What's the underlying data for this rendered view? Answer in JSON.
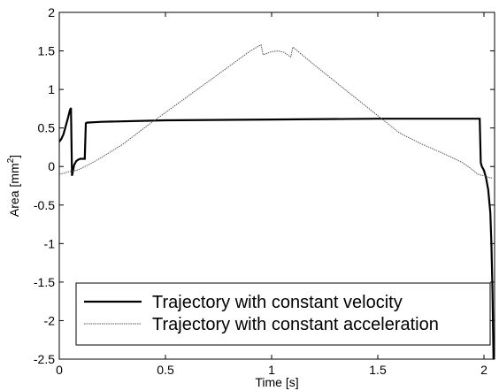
{
  "chart_data": {
    "type": "line",
    "title": "",
    "xlabel": "Time [s]",
    "ylabel_main": "Area [mm",
    "ylabel_sup": "2",
    "ylabel_close": "]",
    "xlim": [
      0,
      2.05
    ],
    "ylim": [
      -2.5,
      2
    ],
    "xticks": [
      0,
      0.5,
      1,
      1.5,
      2
    ],
    "xtick_labels": [
      "0",
      "0.5",
      "1",
      "1.5",
      "2"
    ],
    "yticks": [
      -2.5,
      -2,
      -1.5,
      -1,
      -0.5,
      0,
      0.5,
      1,
      1.5,
      2
    ],
    "ytick_labels": [
      "-2.5",
      "-2",
      "-1.5",
      "-1",
      "-0.5",
      "0",
      "0.5",
      "1",
      "1.5",
      "2"
    ],
    "grid": false,
    "legend_position": "bottom-right",
    "series": [
      {
        "name": "Trajectory with constant velocity",
        "style": "solid-thick",
        "color": "#000000",
        "x": [
          0,
          0.01,
          0.02,
          0.03,
          0.04,
          0.05,
          0.055,
          0.06,
          0.065,
          0.07,
          0.08,
          0.09,
          0.1,
          0.11,
          0.12,
          0.125,
          0.13,
          0.2,
          0.5,
          1.0,
          1.5,
          1.9,
          1.97,
          1.98,
          1.985,
          1.99,
          2.0,
          2.01,
          2.02,
          2.03,
          2.035,
          2.04,
          2.045
        ],
        "y": [
          0.32,
          0.36,
          0.42,
          0.52,
          0.62,
          0.73,
          0.76,
          -0.12,
          -0.05,
          0.02,
          0.07,
          0.09,
          0.1,
          0.1,
          0.1,
          0.56,
          0.57,
          0.58,
          0.6,
          0.61,
          0.62,
          0.62,
          0.62,
          0.62,
          0.05,
          0.0,
          -0.05,
          -0.15,
          -0.3,
          -0.6,
          -1.0,
          -1.6,
          -2.5
        ]
      },
      {
        "name": "Trajectory with constant acceleration",
        "style": "dotted-thin",
        "color": "#555555",
        "x": [
          0,
          0.02,
          0.04,
          0.06,
          0.08,
          0.1,
          0.15,
          0.2,
          0.3,
          0.4,
          0.5,
          0.6,
          0.7,
          0.8,
          0.9,
          0.95,
          0.96,
          1.0,
          1.03,
          1.06,
          1.09,
          1.1,
          1.2,
          1.3,
          1.4,
          1.5,
          1.6,
          1.7,
          1.8,
          1.9,
          1.95,
          1.97,
          2.0,
          2.02,
          2.04
        ],
        "y": [
          -0.1,
          -0.09,
          -0.07,
          -0.06,
          -0.05,
          -0.03,
          0.04,
          0.12,
          0.29,
          0.5,
          0.7,
          0.9,
          1.1,
          1.3,
          1.5,
          1.58,
          1.45,
          1.49,
          1.5,
          1.48,
          1.42,
          1.55,
          1.32,
          1.1,
          0.88,
          0.66,
          0.44,
          0.3,
          0.18,
          0.05,
          -0.05,
          -0.1,
          -0.12,
          -0.14,
          -0.15
        ]
      }
    ]
  }
}
